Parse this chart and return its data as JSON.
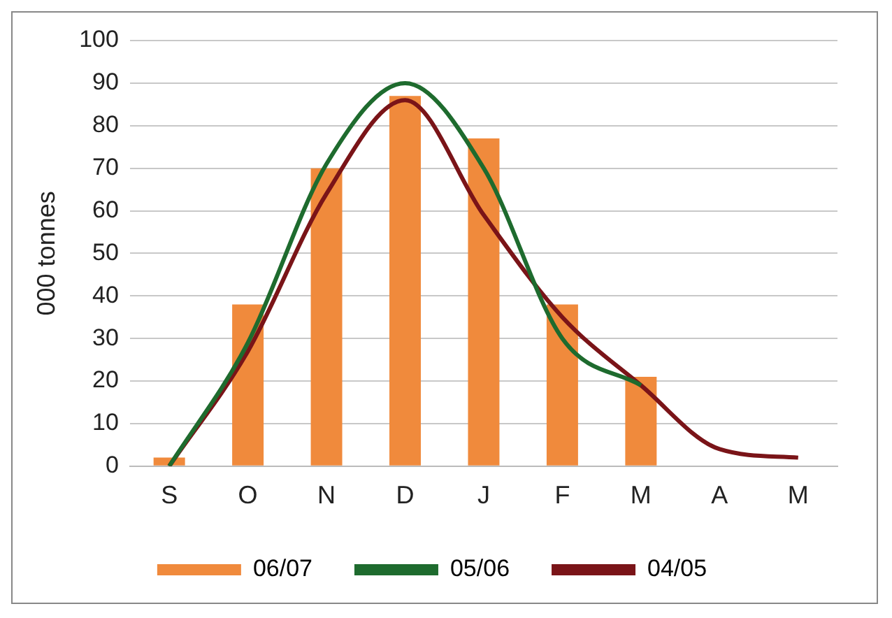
{
  "chart_data": {
    "type": "bar",
    "ylabel": "000 tonnes",
    "categories": [
      "S",
      "O",
      "N",
      "D",
      "J",
      "F",
      "M",
      "A",
      "M"
    ],
    "series": [
      {
        "name": "06/07",
        "color": "#f08a3c",
        "values": [
          2,
          38,
          70,
          87,
          77,
          38,
          21,
          null,
          null
        ]
      },
      {
        "name": "05/06",
        "type": "line",
        "color": "#1e6b2e",
        "values": [
          0,
          29,
          71,
          90,
          70,
          30,
          19,
          null,
          null
        ]
      },
      {
        "name": "04/05",
        "type": "line",
        "color": "#7a1418",
        "values": [
          0,
          27,
          64,
          86,
          59,
          35,
          19,
          4,
          2
        ]
      }
    ],
    "ylim": [
      0,
      100
    ],
    "yticks": [
      0,
      10,
      20,
      30,
      40,
      50,
      60,
      70,
      80,
      90,
      100
    ],
    "grid": "y",
    "legend": "bottom",
    "marker": "none",
    "line_style": "solid"
  }
}
